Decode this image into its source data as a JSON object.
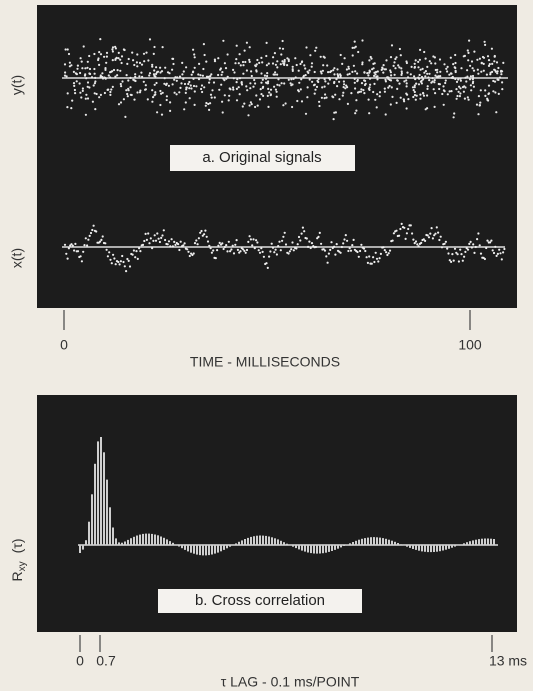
{
  "panel_a": {
    "y_signal_label": "y(t)",
    "x_signal_label": "x(t)",
    "caption": "a. Original signals",
    "tick_start": "0",
    "tick_end": "100",
    "axis_label": "TIME - MILLISECONDS"
  },
  "panel_b": {
    "y_label": {
      "symbol": "R",
      "subscript": "xy",
      "argument": "(τ)"
    },
    "caption": "b. Cross correlation",
    "tick_start": "0",
    "tick_peak": "0.7",
    "tick_end": "13 ms",
    "axis_label": "τ LAG - 0.1 ms/POINT"
  }
}
